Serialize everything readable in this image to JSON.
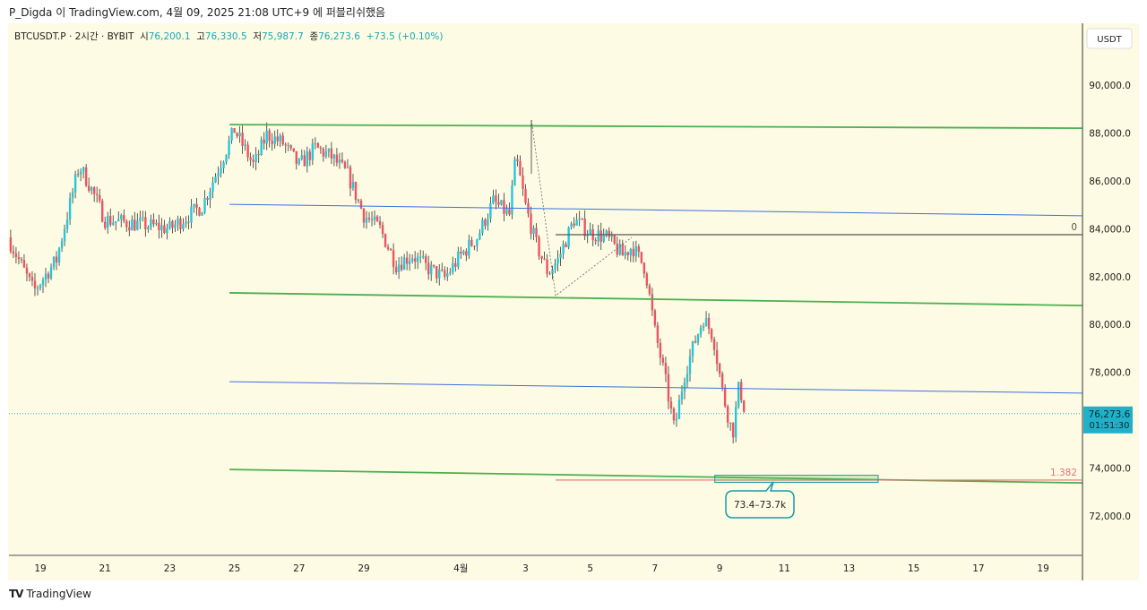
{
  "header": {
    "published": "P_Digda 이 TradingView.com, 4월 09, 2025 21:08 UTC+9 에 퍼블리쉬했음"
  },
  "legend": {
    "symbol": "BTCUSDT.P · 2시간 · BYBIT",
    "open_label": "시",
    "open": "76,200.1",
    "high_label": "고",
    "high": "76,330.5",
    "low_label": "저",
    "low": "75,987.7",
    "close_label": "종",
    "close": "76,273.6",
    "change": "+73.5 (+0.10%)"
  },
  "price_axis": {
    "currency": "USDT",
    "last_price": "76,273.6",
    "countdown": "01:51:30"
  },
  "footer": {
    "brand": "TradingView",
    "logo_icon": "tradingview-logo-icon"
  },
  "colors": {
    "up": "#26c6da",
    "down": "#ef5360",
    "background": "#fdfbe3",
    "trend": "#4caf50",
    "mid": "#3d6fe0",
    "fib_target": "#e57373",
    "last_price": "#22b0c8"
  },
  "chart_data": {
    "type": "candlestick",
    "interval": "2h",
    "ylim": [
      70500,
      91500
    ],
    "y_ticks": [
      "90,000.0",
      "88,000.0",
      "86,000.0",
      "84,000.0",
      "82,000.0",
      "80,000.0",
      "78,000.0",
      "76,000.0",
      "74,000.0",
      "72,000.0"
    ],
    "y_tick_values": [
      90000,
      88000,
      86000,
      84000,
      82000,
      80000,
      78000,
      76000,
      74000,
      72000
    ],
    "x_ticks": [
      {
        "label": "19",
        "day": 19
      },
      {
        "label": "21",
        "day": 21
      },
      {
        "label": "23",
        "day": 23
      },
      {
        "label": "25",
        "day": 25
      },
      {
        "label": "27",
        "day": 27
      },
      {
        "label": "29",
        "day": 29
      },
      {
        "label": "4월",
        "day": 32
      },
      {
        "label": "3",
        "day": 34
      },
      {
        "label": "5",
        "day": 36
      },
      {
        "label": "7",
        "day": 38
      },
      {
        "label": "9",
        "day": 40
      },
      {
        "label": "11",
        "day": 42
      },
      {
        "label": "13",
        "day": 44
      },
      {
        "label": "15",
        "day": 46
      },
      {
        "label": "17",
        "day": 48
      },
      {
        "label": "19",
        "day": 50
      }
    ],
    "price_path_approx": [
      [
        18.0,
        83640
      ],
      [
        18.8,
        81390
      ],
      [
        19.5,
        82700
      ],
      [
        20.2,
        86630
      ],
      [
        20.5,
        85880
      ],
      [
        21,
        84380
      ],
      [
        22,
        84200
      ],
      [
        23,
        84000
      ],
      [
        24,
        84950
      ],
      [
        24.6,
        86820
      ],
      [
        25,
        88130
      ],
      [
        25.6,
        86630
      ],
      [
        26,
        87940
      ],
      [
        26.5,
        87570
      ],
      [
        27,
        86630
      ],
      [
        27.5,
        87380
      ],
      [
        28,
        87000
      ],
      [
        28.5,
        86260
      ],
      [
        29,
        84570
      ],
      [
        29.5,
        84000
      ],
      [
        30,
        82500
      ],
      [
        30.5,
        82890
      ],
      [
        31,
        82330
      ],
      [
        31.5,
        81950
      ],
      [
        32,
        82890
      ],
      [
        32.5,
        83640
      ],
      [
        33,
        85130
      ],
      [
        33.5,
        84570
      ],
      [
        33.7,
        87000
      ],
      [
        34,
        84950
      ],
      [
        34.3,
        83450
      ],
      [
        34.7,
        82140
      ],
      [
        35,
        82700
      ],
      [
        35.5,
        84380
      ],
      [
        36,
        83830
      ],
      [
        36.5,
        83640
      ],
      [
        37,
        82890
      ],
      [
        37.3,
        83260
      ],
      [
        37.7,
        82330
      ],
      [
        38,
        79710
      ],
      [
        38.3,
        77840
      ],
      [
        38.6,
        75590
      ],
      [
        38.9,
        77840
      ],
      [
        39.2,
        79150
      ],
      [
        39.5,
        80270
      ],
      [
        39.8,
        79520
      ],
      [
        40.1,
        77090
      ],
      [
        40.4,
        75400
      ],
      [
        40.6,
        77460
      ],
      [
        40.8,
        76273.6
      ]
    ],
    "trend_lines": [
      {
        "kind": "channel",
        "color": "trend",
        "from": [
          24.85,
          88350
        ],
        "to": [
          51.2,
          88200
        ]
      },
      {
        "kind": "mid",
        "color": "mid",
        "from": [
          24.85,
          85020
        ],
        "to": [
          51.2,
          84540
        ]
      },
      {
        "kind": "channel",
        "color": "trend",
        "from": [
          24.85,
          81320
        ],
        "to": [
          51.2,
          80790
        ]
      },
      {
        "kind": "mid",
        "color": "mid",
        "from": [
          24.85,
          77610
        ],
        "to": [
          51.2,
          77130
        ]
      },
      {
        "kind": "channel",
        "color": "trend",
        "from": [
          24.85,
          73940
        ],
        "to": [
          51.2,
          73380
        ]
      }
    ],
    "fib_levels": [
      {
        "label": "0",
        "price": 83750,
        "from_day": 34.93,
        "color": "#555555"
      },
      {
        "label": "1.382",
        "price": 73500,
        "from_day": 34.93,
        "color": "fib_target"
      }
    ],
    "fib_swing": [
      [
        34.18,
        88540
      ],
      [
        34.93,
        81200
      ],
      [
        37.28,
        83640
      ]
    ],
    "zone": {
      "from_day": 39.85,
      "to_day": 44.9,
      "low": 73400,
      "high": 73700,
      "label": "73.4–73.7k"
    },
    "last_price": 76273.6
  }
}
